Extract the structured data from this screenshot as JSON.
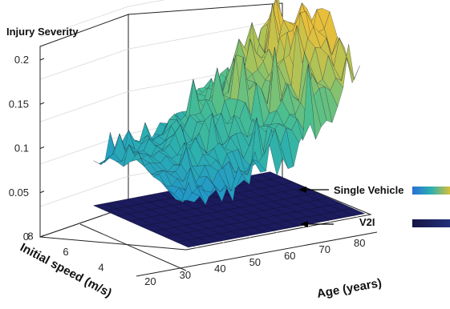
{
  "chart_data": {
    "type": "surface",
    "zlabel": "Injury Severity",
    "xlabel": "Age (years)",
    "ylabel": "Initial speed (m/s)",
    "x_ticks": [
      20,
      30,
      40,
      50,
      60,
      70,
      80
    ],
    "y_ticks": [
      4,
      6,
      8
    ],
    "z_ticks": [
      "0",
      "0.05",
      "0.1",
      "0.15",
      "0.2"
    ],
    "xlim": [
      16,
      85
    ],
    "ylim": [
      3,
      9
    ],
    "zlim": [
      0,
      0.22
    ],
    "grid": true,
    "colormap": [
      "#1f5fc4",
      "#1f8fd0",
      "#2bb0b0",
      "#4cbf8f",
      "#a8c35a",
      "#e8bf3a"
    ],
    "series": [
      {
        "name": "Single Vehicle",
        "style": "surface",
        "peak_value": 0.2,
        "grid_x": [
          18,
          28,
          38,
          48,
          58,
          68,
          78,
          84
        ],
        "grid_y": [
          3.5,
          5,
          6.5,
          8,
          9
        ],
        "values": [
          [
            0.05,
            0.05,
            0.05,
            0.06,
            0.08,
            0.11,
            0.15,
            0.16
          ],
          [
            0.06,
            0.06,
            0.07,
            0.08,
            0.11,
            0.14,
            0.18,
            0.19
          ],
          [
            0.07,
            0.08,
            0.09,
            0.11,
            0.13,
            0.16,
            0.2,
            0.21
          ],
          [
            0.06,
            0.07,
            0.08,
            0.1,
            0.12,
            0.14,
            0.17,
            0.18
          ],
          [
            0.05,
            0.06,
            0.06,
            0.08,
            0.1,
            0.12,
            0.15,
            0.15
          ]
        ]
      },
      {
        "name": "V2I",
        "style": "flat-surface",
        "values_z": 0.0,
        "color": "#1b1b5e"
      }
    ],
    "legend": [
      {
        "label": "Single Vehicle",
        "colors": [
          "#2a6fd6",
          "#2bb0b0",
          "#d7bf3b"
        ]
      },
      {
        "label": "V2I",
        "colors": [
          "#151545",
          "#22307a"
        ]
      }
    ]
  }
}
